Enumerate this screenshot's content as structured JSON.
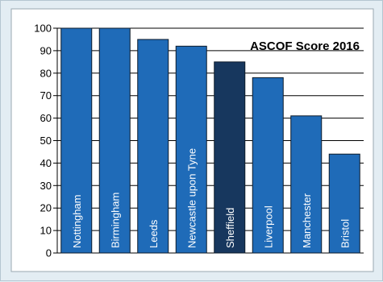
{
  "chart_data": {
    "type": "bar",
    "title": "ASCOF Score 2016",
    "xlabel": "",
    "ylabel": "",
    "ylim": [
      0,
      100
    ],
    "yticks": [
      0,
      10,
      20,
      30,
      40,
      50,
      60,
      70,
      80,
      90,
      100
    ],
    "grid": true,
    "categories": [
      "Nottingham",
      "Birmingham",
      "Leeds",
      "Newcastle upon Tyne",
      "Sheffield",
      "Liverpool",
      "Manchester",
      "Bristol"
    ],
    "values": [
      100,
      100,
      95,
      92,
      85,
      78,
      61,
      44
    ],
    "highlight": "Sheffield",
    "colors": {
      "bar": "#1f6bb8",
      "highlight": "#17375e",
      "bar_edge": "#0d1b2a",
      "grid": "#000000",
      "panel_bg": "#ffffff",
      "page_bg": "#e3edf3"
    }
  }
}
